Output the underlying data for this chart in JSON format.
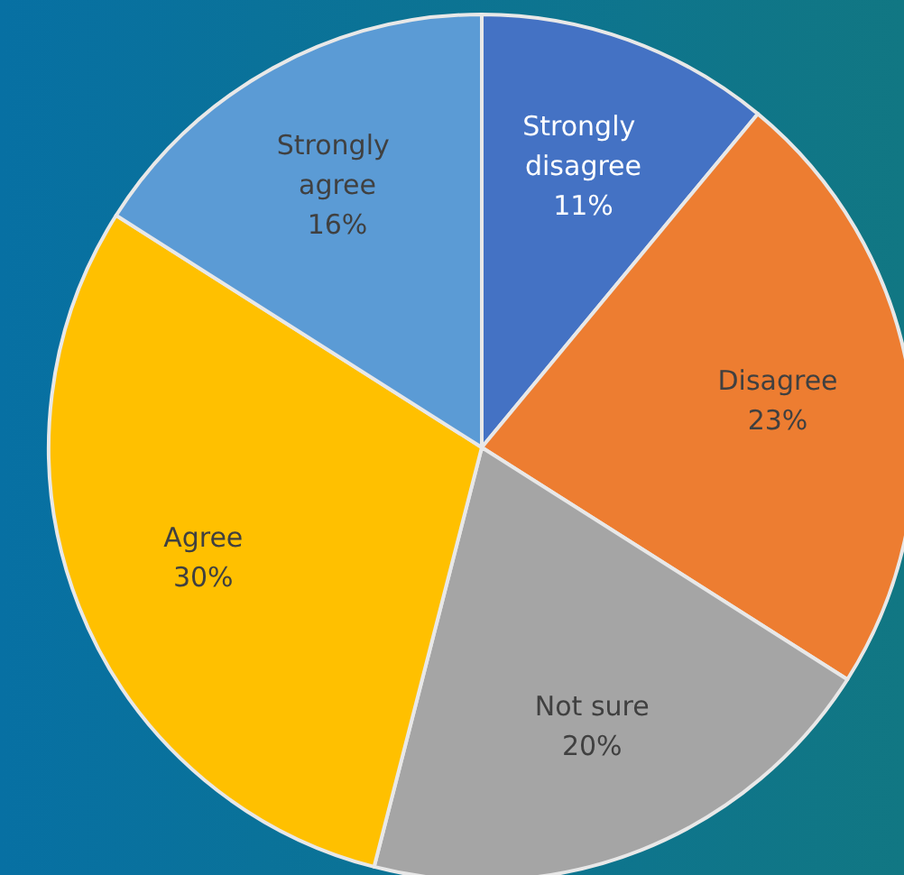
{
  "chart_data": {
    "type": "pie",
    "categories": [
      "Strongly disagree",
      "Disagree",
      "Not sure",
      "Agree",
      "Strongly agree"
    ],
    "values": [
      11,
      23,
      20,
      30,
      16
    ],
    "colors": [
      "#4472c4",
      "#ed7d31",
      "#a5a5a5",
      "#ffc000",
      "#5b9bd5"
    ],
    "value_labels": [
      "11%",
      "23%",
      "20%",
      "30%",
      "16%"
    ],
    "legend": false
  }
}
